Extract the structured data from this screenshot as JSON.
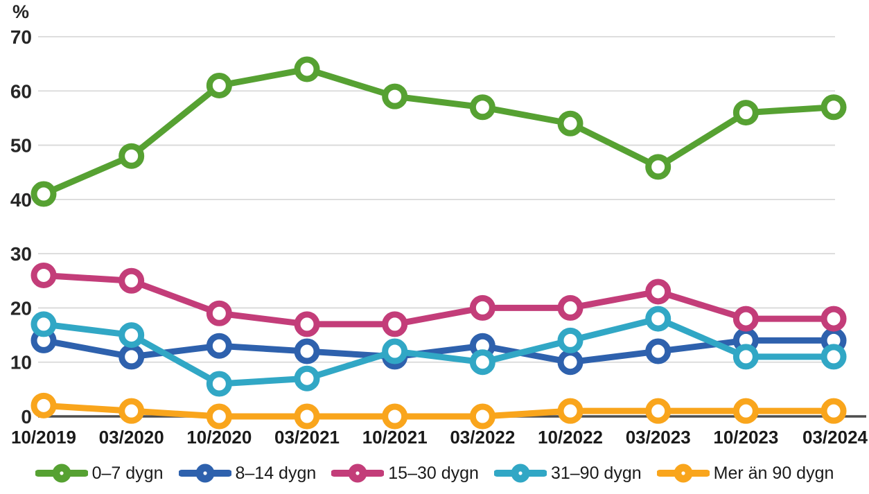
{
  "chart_data": {
    "type": "line",
    "title": "",
    "unit_label": "%",
    "categories": [
      "10/2019",
      "03/2020",
      "10/2020",
      "03/2021",
      "10/2021",
      "03/2022",
      "10/2022",
      "03/2023",
      "10/2023",
      "03/2024"
    ],
    "series": [
      {
        "name": "0–7 dygn",
        "color": "#56a132",
        "values": [
          41,
          48,
          61,
          64,
          59,
          57,
          54,
          46,
          56,
          57
        ]
      },
      {
        "name": "8–14 dygn",
        "color": "#2e61ad",
        "values": [
          14,
          11,
          13,
          12,
          11,
          13,
          10,
          12,
          14,
          14
        ]
      },
      {
        "name": "15–30 dygn",
        "color": "#c33d79",
        "values": [
          26,
          25,
          19,
          17,
          17,
          20,
          20,
          23,
          18,
          18
        ]
      },
      {
        "name": "31–90 dygn",
        "color": "#31a7c5",
        "values": [
          17,
          15,
          6,
          7,
          12,
          10,
          14,
          18,
          11,
          11
        ]
      },
      {
        "name": "Mer än 90 dygn",
        "color": "#f9a51c",
        "values": [
          2,
          1,
          0,
          0,
          0,
          0,
          1,
          1,
          1,
          1
        ]
      }
    ],
    "ylim": [
      0,
      70
    ],
    "ytick_interval": 10,
    "ytick_labels": [
      "0",
      "10",
      "20",
      "30",
      "40",
      "50",
      "60",
      "70"
    ],
    "grid": true,
    "legend_position": "bottom",
    "style_colors": {
      "gridline": "#d9d9d9",
      "axis_line": "#4d4d4d",
      "tick_label": "#262626",
      "background": "#ffffff"
    }
  }
}
